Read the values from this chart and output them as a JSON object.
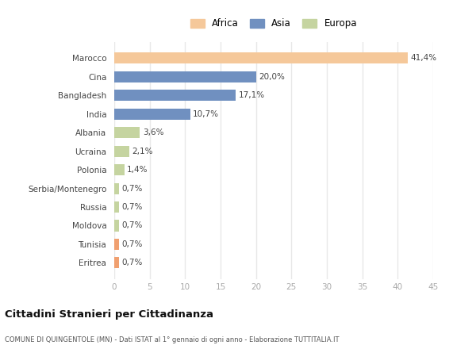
{
  "categories": [
    "Eritrea",
    "Tunisia",
    "Moldova",
    "Russia",
    "Serbia/Montenegro",
    "Polonia",
    "Ucraina",
    "Albania",
    "India",
    "Bangladesh",
    "Cina",
    "Marocco"
  ],
  "values": [
    0.7,
    0.7,
    0.7,
    0.7,
    0.7,
    1.4,
    2.1,
    3.6,
    10.7,
    17.1,
    20.0,
    41.4
  ],
  "labels": [
    "0,7%",
    "0,7%",
    "0,7%",
    "0,7%",
    "0,7%",
    "1,4%",
    "2,1%",
    "3,6%",
    "10,7%",
    "17,1%",
    "20,0%",
    "41,4%"
  ],
  "bar_colors": [
    "#F0A070",
    "#F0A070",
    "#C5D4A0",
    "#C5D4A0",
    "#C5D4A0",
    "#C5D4A0",
    "#C5D4A0",
    "#C5D4A0",
    "#7090C0",
    "#7090C0",
    "#7090C0",
    "#F5C89A"
  ],
  "legend_entries": [
    {
      "label": "Africa",
      "color": "#F5C89A"
    },
    {
      "label": "Asia",
      "color": "#7090C0"
    },
    {
      "label": "Europa",
      "color": "#C5D4A0"
    }
  ],
  "xlim": [
    0,
    45
  ],
  "xticks": [
    0,
    5,
    10,
    15,
    20,
    25,
    30,
    35,
    40,
    45
  ],
  "title": "Cittadini Stranieri per Cittadinanza",
  "subtitle": "COMUNE DI QUINGENTOLE (MN) - Dati ISTAT al 1° gennaio di ogni anno - Elaborazione TUTTITALIA.IT",
  "bg_color": "#ffffff",
  "plot_bg_color": "#ffffff",
  "grid_color": "#e8e8e8"
}
